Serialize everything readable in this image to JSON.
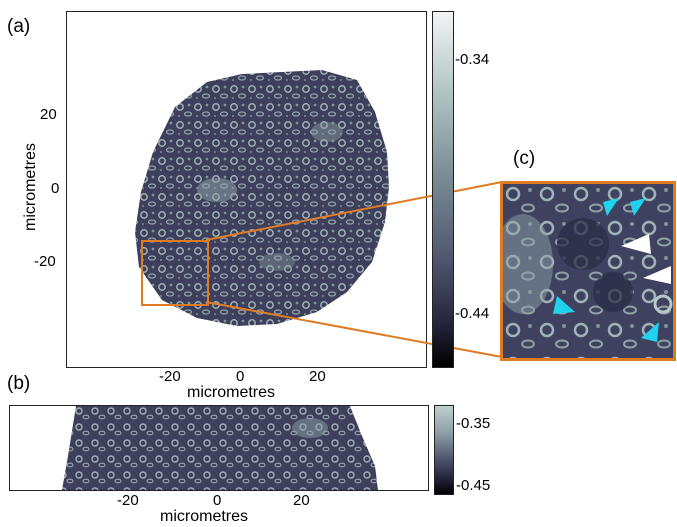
{
  "panels": {
    "a": {
      "label": "(a)",
      "xlabel": "micrometres",
      "ylabel": "micrometres",
      "xticks": [
        "-20",
        "0",
        "20"
      ],
      "yticks": [
        "20",
        "0",
        "-20"
      ],
      "colorbar_ticks": [
        "-0.34",
        "-0.44"
      ]
    },
    "b": {
      "label": "(b)",
      "xlabel": "micrometres",
      "xticks": [
        "-20",
        "0",
        "20"
      ],
      "colorbar_ticks": [
        "-0.35",
        "-0.45"
      ]
    },
    "c": {
      "label": "(c)"
    }
  },
  "colors": {
    "highlight": "#e07b22",
    "tissue_dark": "#3d3f5c",
    "tissue_light": "#9fb3b5",
    "arrow_cyan": "#1fd3ee",
    "arrow_white": "#ffffff"
  }
}
